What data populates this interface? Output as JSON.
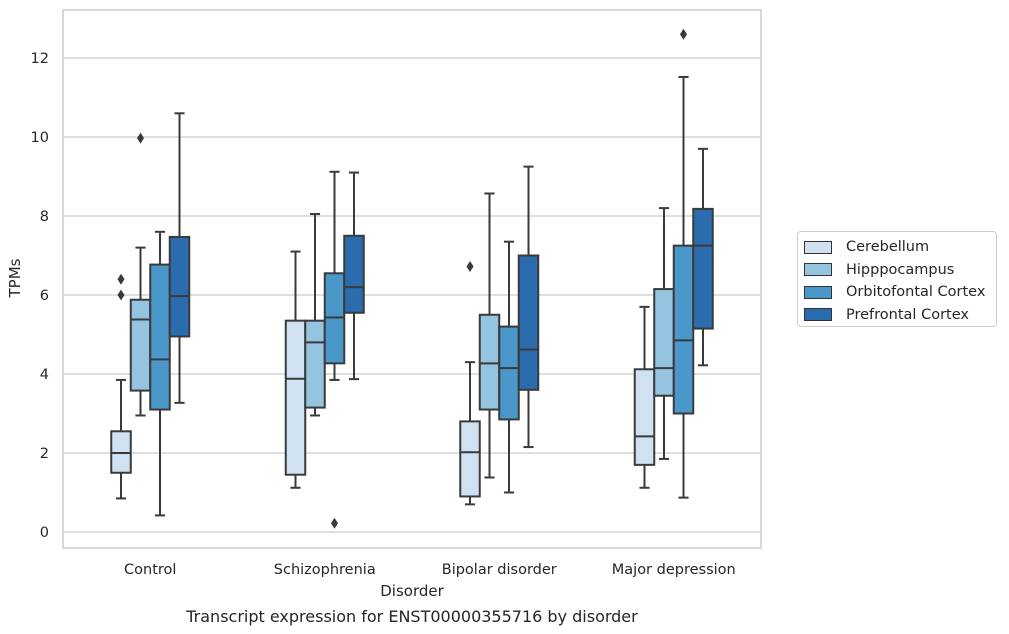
{
  "chart_data": {
    "type": "box",
    "title": "",
    "caption": "Transcript expression for ENST00000355716 by disorder",
    "xlabel": "Disorder",
    "ylabel": "TPMs",
    "ylim": [
      -0.4,
      13.2
    ],
    "yticks": [
      0,
      2,
      4,
      6,
      8,
      10,
      12
    ],
    "grid": "horizontal",
    "legend_position": "right",
    "categories": [
      "Control",
      "Schizophrenia",
      "Bipolar disorder",
      "Major depression"
    ],
    "series": [
      {
        "name": "Cerebellum",
        "color": "#d0e1f2",
        "boxes": [
          {
            "whisker_low": 0.85,
            "q1": 1.5,
            "median": 2.0,
            "q3": 2.55,
            "whisker_high": 3.85,
            "outliers": [
              6.0,
              6.4
            ]
          },
          {
            "whisker_low": 1.12,
            "q1": 1.45,
            "median": 3.88,
            "q3": 5.35,
            "whisker_high": 7.1,
            "outliers": []
          },
          {
            "whisker_low": 0.7,
            "q1": 0.9,
            "median": 2.02,
            "q3": 2.8,
            "whisker_high": 4.3,
            "outliers": [
              6.72
            ]
          },
          {
            "whisker_low": 1.12,
            "q1": 1.7,
            "median": 2.42,
            "q3": 4.12,
            "whisker_high": 5.7,
            "outliers": []
          }
        ]
      },
      {
        "name": "Hipppocampus",
        "color": "#94c4df",
        "boxes": [
          {
            "whisker_low": 2.95,
            "q1": 3.58,
            "median": 5.38,
            "q3": 5.88,
            "whisker_high": 7.2,
            "outliers": [
              9.97
            ]
          },
          {
            "whisker_low": 2.95,
            "q1": 3.15,
            "median": 4.8,
            "q3": 5.35,
            "whisker_high": 8.05,
            "outliers": []
          },
          {
            "whisker_low": 1.38,
            "q1": 3.1,
            "median": 4.27,
            "q3": 5.5,
            "whisker_high": 8.57,
            "outliers": []
          },
          {
            "whisker_low": 1.85,
            "q1": 3.45,
            "median": 4.15,
            "q3": 6.15,
            "whisker_high": 8.2,
            "outliers": []
          }
        ]
      },
      {
        "name": "Orbitofontal Cortex",
        "color": "#4a98c9",
        "boxes": [
          {
            "whisker_low": 0.42,
            "q1": 3.1,
            "median": 4.37,
            "q3": 6.77,
            "whisker_high": 7.6,
            "outliers": []
          },
          {
            "whisker_low": 3.85,
            "q1": 4.27,
            "median": 5.43,
            "q3": 6.55,
            "whisker_high": 9.12,
            "outliers": [
              0.22
            ]
          },
          {
            "whisker_low": 1.0,
            "q1": 2.85,
            "median": 4.15,
            "q3": 5.2,
            "whisker_high": 7.35,
            "outliers": []
          },
          {
            "whisker_low": 0.87,
            "q1": 3.0,
            "median": 4.85,
            "q3": 7.25,
            "whisker_high": 11.52,
            "outliers": [
              12.6
            ]
          }
        ]
      },
      {
        "name": "Prefrontal Cortex",
        "color": "#2a6cad",
        "boxes": [
          {
            "whisker_low": 3.27,
            "q1": 4.95,
            "median": 5.97,
            "q3": 7.47,
            "whisker_high": 10.6,
            "outliers": []
          },
          {
            "whisker_low": 3.87,
            "q1": 5.55,
            "median": 6.2,
            "q3": 7.5,
            "whisker_high": 9.1,
            "outliers": []
          },
          {
            "whisker_low": 2.15,
            "q1": 3.6,
            "median": 4.62,
            "q3": 7.0,
            "whisker_high": 9.25,
            "outliers": []
          },
          {
            "whisker_low": 4.22,
            "q1": 5.15,
            "median": 7.25,
            "q3": 8.18,
            "whisker_high": 9.7,
            "outliers": []
          }
        ]
      }
    ]
  }
}
